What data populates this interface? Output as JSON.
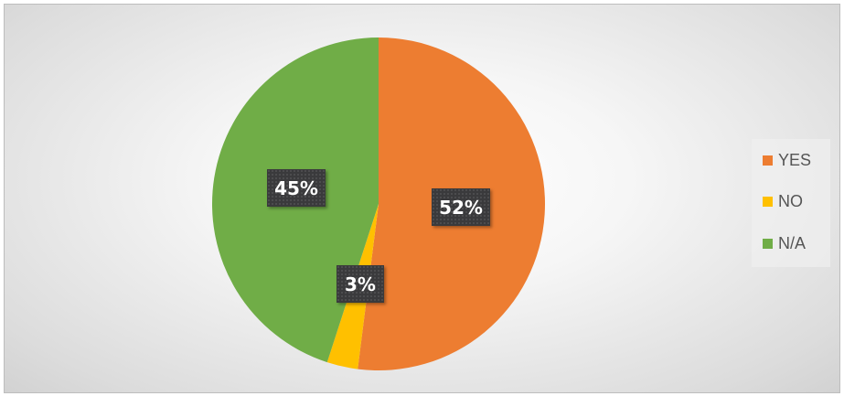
{
  "chart_data": {
    "type": "pie",
    "categories": [
      "YES",
      "NO",
      "N/A"
    ],
    "values": [
      52,
      3,
      45
    ],
    "data_labels": [
      "52%",
      "3%",
      "45%"
    ],
    "colors": [
      "#ed7d31",
      "#ffc000",
      "#70ad47"
    ],
    "start_angle": "top, clockwise",
    "legend": "right"
  }
}
